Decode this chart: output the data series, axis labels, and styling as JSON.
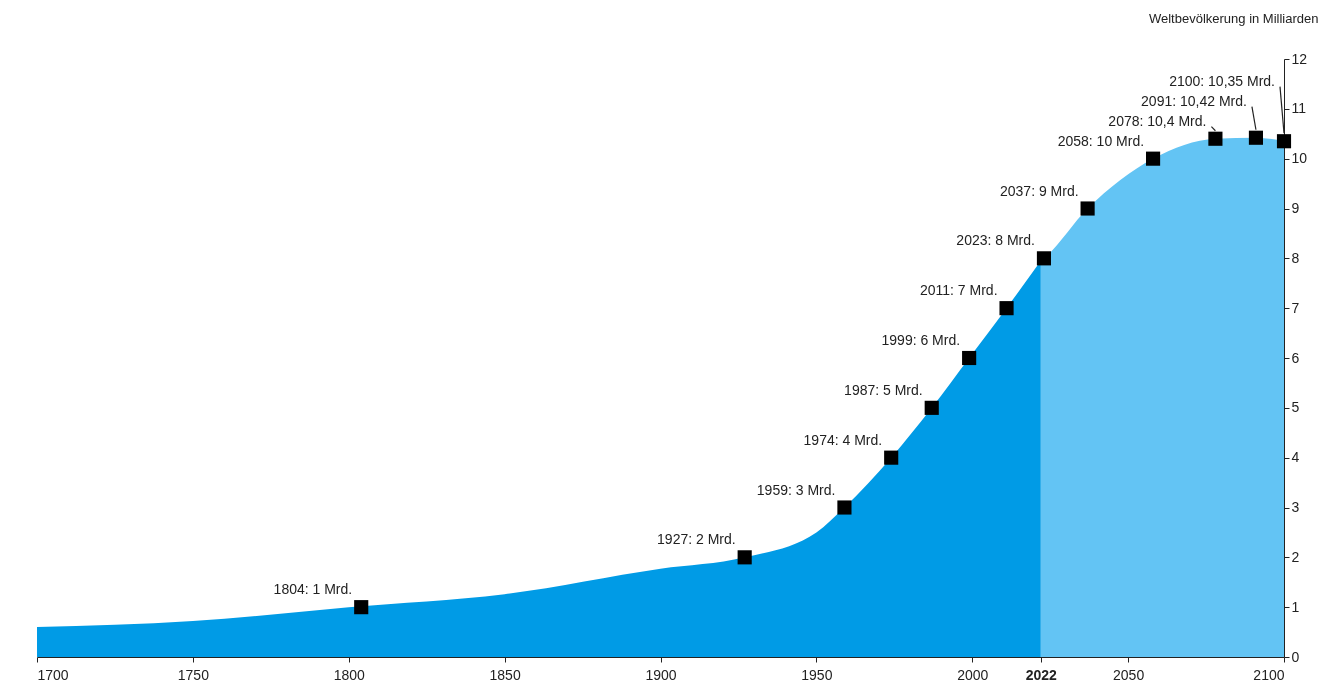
{
  "chart_data": {
    "type": "area",
    "ylabel": "Weltbevölkerung in Milliarden",
    "xlim": [
      1700,
      2100
    ],
    "xticks": [
      1700,
      1750,
      1800,
      1850,
      1900,
      1950,
      2000,
      2022,
      2050,
      2100
    ],
    "ylim": [
      0,
      12
    ],
    "yticks": [
      0,
      1,
      2,
      3,
      4,
      5,
      6,
      7,
      8,
      9,
      10,
      11,
      12
    ],
    "grid": false,
    "legend": false,
    "series": [
      {
        "color": "#009be6",
        "x": [
          1700,
          1750,
          1800,
          1850,
          1900,
          1927,
          1950,
          1959,
          1974,
          1987,
          1999,
          2011,
          2022
        ],
        "values": [
          0.6,
          0.72,
          1.0,
          1.26,
          1.77,
          2,
          2.5,
          3,
          4,
          5,
          6,
          7,
          7.95
        ]
      },
      {
        "color": "#63c4f4",
        "x": [
          2022,
          2023,
          2037,
          2058,
          2078,
          2091,
          2100
        ],
        "values": [
          7.95,
          8,
          9,
          10,
          10.4,
          10.42,
          10.35
        ]
      },
      {
        "type": "scatter",
        "color": "#000000",
        "marker": "square",
        "x": [
          1804,
          1927,
          1959,
          1974,
          1987,
          1999,
          2011,
          2023,
          2037,
          2058,
          2078,
          2091,
          2100
        ],
        "values": [
          1,
          2,
          3,
          4,
          5,
          6,
          7,
          8,
          9,
          10,
          10.4,
          10.42,
          10.35
        ],
        "value_labels": [
          "1804: 1 Mrd.",
          "1927: 2 Mrd.",
          "1959: 3 Mrd.",
          "1974: 4 Mrd.",
          "1987: 5 Mrd.",
          "1999: 6 Mrd.",
          "2011: 7 Mrd.",
          "2023: 8 Mrd.",
          "2037: 9 Mrd.",
          "2058: 10 Mrd.",
          "2078: 10,4 Mrd.",
          "2091: 10,42 Mrd.",
          "2100: 10,35 Mrd."
        ]
      }
    ]
  }
}
